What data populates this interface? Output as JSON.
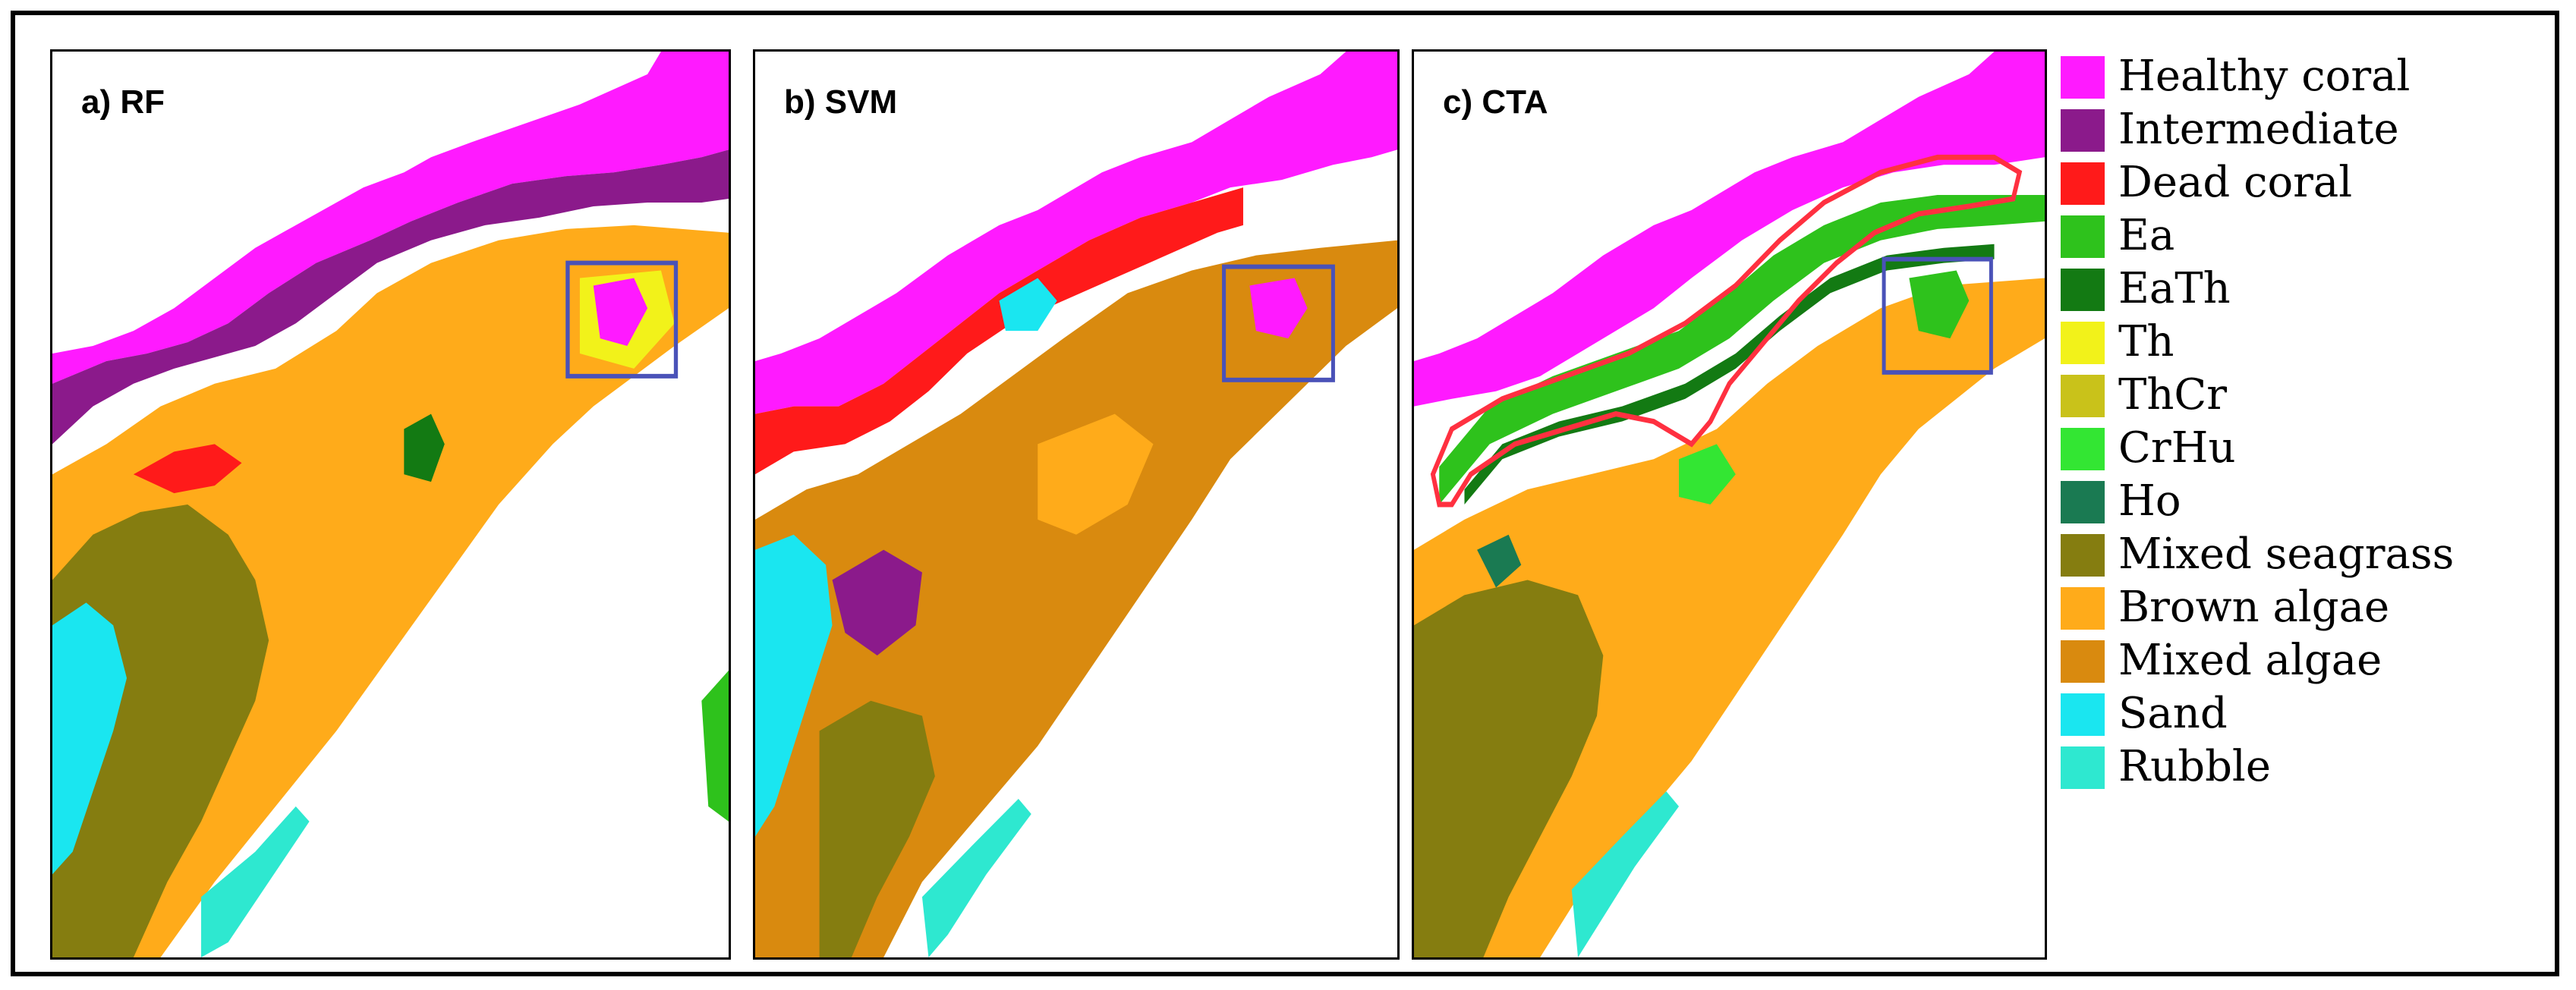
{
  "panels": [
    {
      "id": "a",
      "label": "a)  RF"
    },
    {
      "id": "b",
      "label": "b)  SVM"
    },
    {
      "id": "c",
      "label": "c)  CTA"
    }
  ],
  "legend": {
    "items": [
      {
        "label": "Healthy coral",
        "color": "#ff1aff"
      },
      {
        "label": "Intermediate",
        "color": "#8b1a8b"
      },
      {
        "label": "Dead coral",
        "color": "#ff1a1a"
      },
      {
        "label": "Ea",
        "color": "#2ec21c"
      },
      {
        "label": "EaTh",
        "color": "#137a13"
      },
      {
        "label": "Th",
        "color": "#f2f21a"
      },
      {
        "label": "ThCr",
        "color": "#c9c21a"
      },
      {
        "label": "CrHu",
        "color": "#33e633"
      },
      {
        "label": "Ho",
        "color": "#1a7a52"
      },
      {
        "label": "Mixed seagrass",
        "color": "#857d10"
      },
      {
        "label": "Brown algae",
        "color": "#ffab1a"
      },
      {
        "label": "Mixed algae",
        "color": "#d98a0f"
      },
      {
        "label": "Sand",
        "color": "#1ae6f0"
      },
      {
        "label": "Rubble",
        "color": "#2ee8d0"
      }
    ]
  },
  "highlight_colors": {
    "inset_box": "#4a52b8",
    "outline": "#ff3040"
  }
}
